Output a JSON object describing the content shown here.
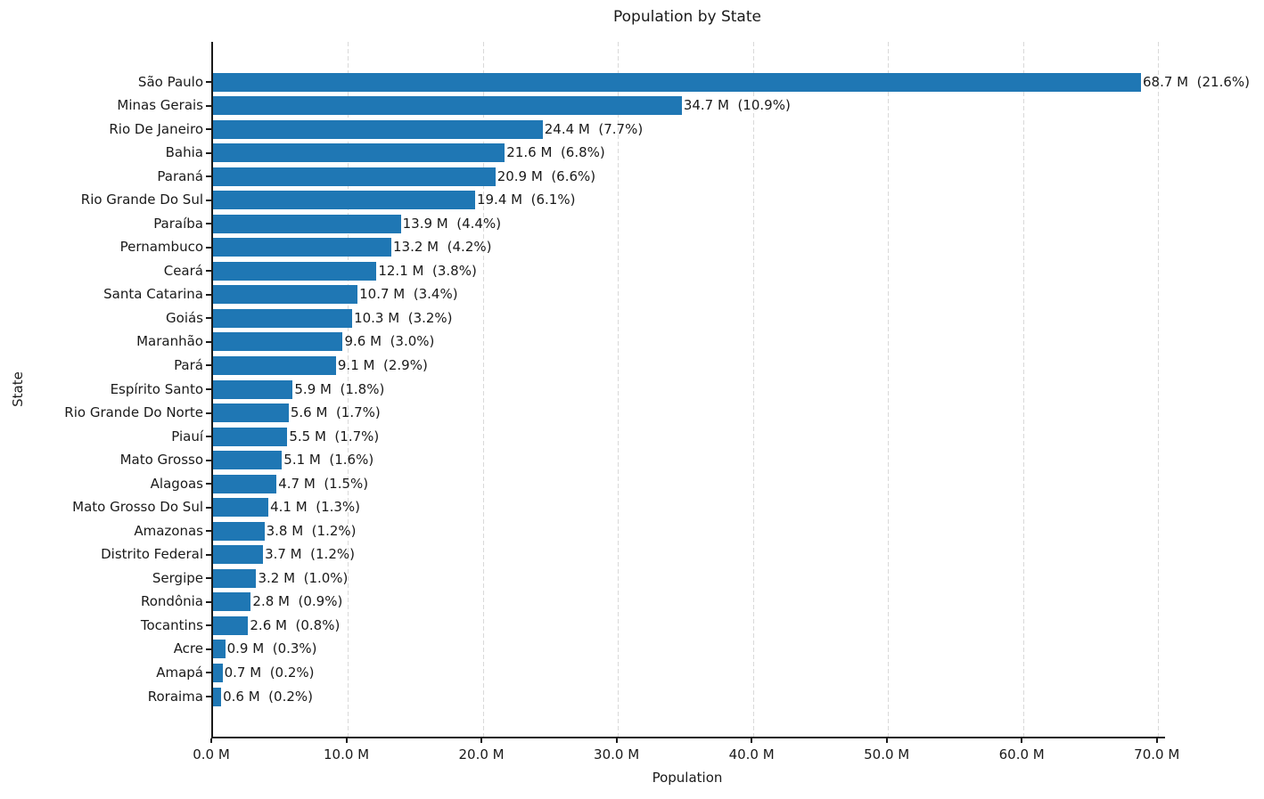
{
  "title": "Population by State",
  "colors": {
    "bar": "#1f77b4",
    "grid": "#d9d9d9",
    "axis": "#1a1a1a",
    "text": "#1a1a1a",
    "background": "#ffffff"
  },
  "chart_data": {
    "type": "bar",
    "orientation": "horizontal",
    "title": "Population by State",
    "xlabel": "Population",
    "ylabel": "State",
    "xlim": [
      0,
      70.48
    ],
    "x_unit": "millions",
    "grid": "vertical-dashed",
    "legend": "none",
    "x_ticks": [
      {
        "value": 0,
        "label": "0.0 M"
      },
      {
        "value": 10,
        "label": "10.0 M"
      },
      {
        "value": 20,
        "label": "20.0 M"
      },
      {
        "value": 30,
        "label": "30.0 M"
      },
      {
        "value": 40,
        "label": "40.0 M"
      },
      {
        "value": 50,
        "label": "50.0 M"
      },
      {
        "value": 60,
        "label": "60.0 M"
      },
      {
        "value": 70,
        "label": "70.0 M"
      }
    ],
    "rows": [
      {
        "state": "São Paulo",
        "value_m": 68.7,
        "pct": 21.6,
        "label": "68.7 M  (21.6%)"
      },
      {
        "state": "Minas Gerais",
        "value_m": 34.7,
        "pct": 10.9,
        "label": "34.7 M  (10.9%)"
      },
      {
        "state": "Rio De Janeiro",
        "value_m": 24.4,
        "pct": 7.7,
        "label": "24.4 M  (7.7%)"
      },
      {
        "state": "Bahia",
        "value_m": 21.6,
        "pct": 6.8,
        "label": "21.6 M  (6.8%)"
      },
      {
        "state": "Paraná",
        "value_m": 20.9,
        "pct": 6.6,
        "label": "20.9 M  (6.6%)"
      },
      {
        "state": "Rio Grande Do Sul",
        "value_m": 19.4,
        "pct": 6.1,
        "label": "19.4 M  (6.1%)"
      },
      {
        "state": "Paraíba",
        "value_m": 13.9,
        "pct": 4.4,
        "label": "13.9 M  (4.4%)"
      },
      {
        "state": "Pernambuco",
        "value_m": 13.2,
        "pct": 4.2,
        "label": "13.2 M  (4.2%)"
      },
      {
        "state": "Ceará",
        "value_m": 12.1,
        "pct": 3.8,
        "label": "12.1 M  (3.8%)"
      },
      {
        "state": "Santa Catarina",
        "value_m": 10.7,
        "pct": 3.4,
        "label": "10.7 M  (3.4%)"
      },
      {
        "state": "Goiás",
        "value_m": 10.3,
        "pct": 3.2,
        "label": "10.3 M  (3.2%)"
      },
      {
        "state": "Maranhão",
        "value_m": 9.6,
        "pct": 3.0,
        "label": "9.6 M  (3.0%)"
      },
      {
        "state": "Pará",
        "value_m": 9.1,
        "pct": 2.9,
        "label": "9.1 M  (2.9%)"
      },
      {
        "state": "Espírito Santo",
        "value_m": 5.9,
        "pct": 1.8,
        "label": "5.9 M  (1.8%)"
      },
      {
        "state": "Rio Grande Do Norte",
        "value_m": 5.6,
        "pct": 1.7,
        "label": "5.6 M  (1.7%)"
      },
      {
        "state": "Piauí",
        "value_m": 5.5,
        "pct": 1.7,
        "label": "5.5 M  (1.7%)"
      },
      {
        "state": "Mato Grosso",
        "value_m": 5.1,
        "pct": 1.6,
        "label": "5.1 M  (1.6%)"
      },
      {
        "state": "Alagoas",
        "value_m": 4.7,
        "pct": 1.5,
        "label": "4.7 M  (1.5%)"
      },
      {
        "state": "Mato Grosso Do Sul",
        "value_m": 4.1,
        "pct": 1.3,
        "label": "4.1 M  (1.3%)"
      },
      {
        "state": "Amazonas",
        "value_m": 3.8,
        "pct": 1.2,
        "label": "3.8 M  (1.2%)"
      },
      {
        "state": "Distrito Federal",
        "value_m": 3.7,
        "pct": 1.2,
        "label": "3.7 M  (1.2%)"
      },
      {
        "state": "Sergipe",
        "value_m": 3.2,
        "pct": 1.0,
        "label": "3.2 M  (1.0%)"
      },
      {
        "state": "Rondônia",
        "value_m": 2.8,
        "pct": 0.9,
        "label": "2.8 M  (0.9%)"
      },
      {
        "state": "Tocantins",
        "value_m": 2.6,
        "pct": 0.8,
        "label": "2.6 M  (0.8%)"
      },
      {
        "state": "Acre",
        "value_m": 0.9,
        "pct": 0.3,
        "label": "0.9 M  (0.3%)"
      },
      {
        "state": "Amapá",
        "value_m": 0.7,
        "pct": 0.2,
        "label": "0.7 M  (0.2%)"
      },
      {
        "state": "Roraima",
        "value_m": 0.6,
        "pct": 0.2,
        "label": "0.6 M  (0.2%)"
      }
    ]
  }
}
